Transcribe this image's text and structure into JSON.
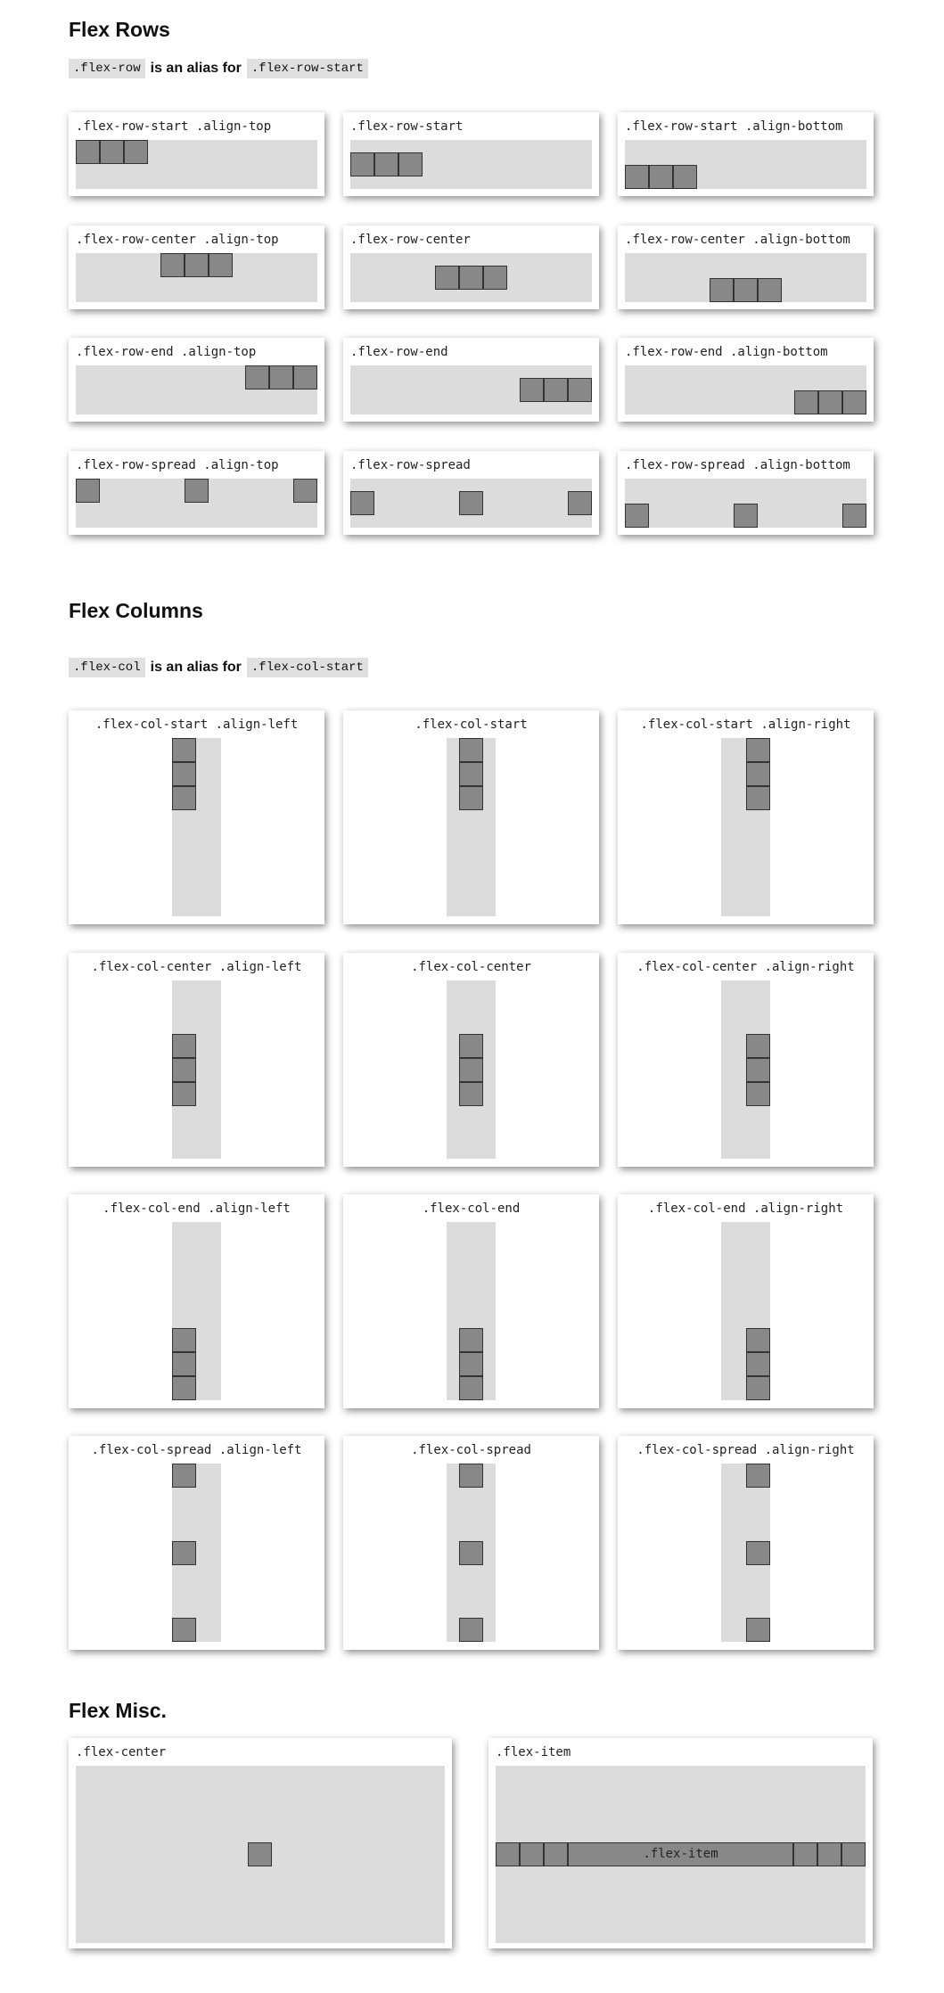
{
  "sections": {
    "rows_title": "Flex Rows",
    "rows_alias_code": ".flex-row",
    "rows_alias_text": "is an alias for",
    "rows_alias_target": ".flex-row-start",
    "cols_title": "Flex Columns",
    "cols_alias_code": ".flex-col",
    "cols_alias_text": "is an alias for",
    "cols_alias_target": ".flex-col-start",
    "misc_title": "Flex Misc."
  },
  "row_demos": [
    ".flex-row-start .align-top",
    ".flex-row-start",
    ".flex-row-start .align-bottom",
    ".flex-row-center .align-top",
    ".flex-row-center",
    ".flex-row-center .align-bottom",
    ".flex-row-end .align-top",
    ".flex-row-end",
    ".flex-row-end .align-bottom",
    ".flex-row-spread .align-top",
    ".flex-row-spread",
    ".flex-row-spread .align-bottom"
  ],
  "col_demos": [
    ".flex-col-start .align-left",
    ".flex-col-start",
    ".flex-col-start .align-right",
    ".flex-col-center .align-left",
    ".flex-col-center",
    ".flex-col-center .align-right",
    ".flex-col-end .align-left",
    ".flex-col-end",
    ".flex-col-end .align-right",
    ".flex-col-spread .align-left",
    ".flex-col-spread",
    ".flex-col-spread .align-right"
  ],
  "misc_demos": {
    "center_label": ".flex-center",
    "item_label": ".flex-item",
    "item_inner_label": ".flex-item"
  },
  "colors": {
    "container": "#dcdcdc",
    "box_fill": "#888888",
    "box_border": "#333333"
  }
}
